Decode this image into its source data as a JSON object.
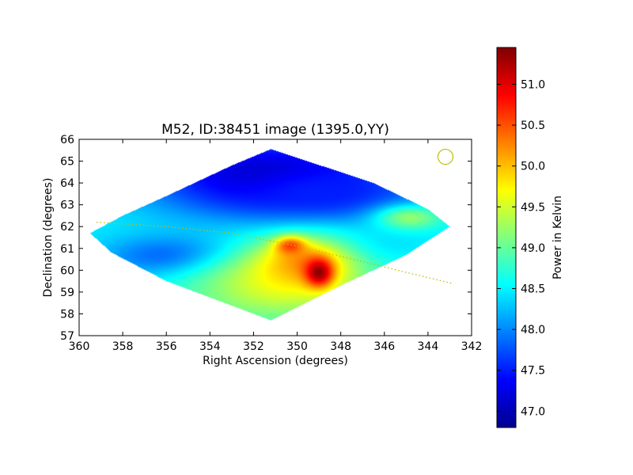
{
  "chart_data": {
    "type": "heatmap",
    "title": "M52, ID:38451 image (1395.0,YY)",
    "xlabel": "Right Ascension (degrees)",
    "ylabel": "Declination (degrees)",
    "xlim": [
      360,
      342
    ],
    "ylim": [
      57,
      66
    ],
    "xticks": [
      "360",
      "358",
      "356",
      "354",
      "352",
      "350",
      "348",
      "346",
      "344",
      "342"
    ],
    "yticks": [
      "57",
      "58",
      "59",
      "60",
      "61",
      "62",
      "63",
      "64",
      "65",
      "66"
    ],
    "colorbar": {
      "label": "Power in Kelvin",
      "range": [
        46.8,
        51.45
      ],
      "ticks": [
        "47.0",
        "47.5",
        "48.0",
        "48.5",
        "49.0",
        "49.5",
        "50.0",
        "50.5",
        "51.0"
      ],
      "colormap": "jet"
    },
    "map_boundary": [
      [
        351.2,
        65.55
      ],
      [
        346.5,
        64.0
      ],
      [
        344.0,
        62.8
      ],
      [
        343.0,
        62.0
      ],
      [
        345.0,
        60.7
      ],
      [
        348.0,
        59.3
      ],
      [
        351.2,
        57.7
      ],
      [
        356.0,
        59.5
      ],
      [
        358.5,
        60.8
      ],
      [
        359.5,
        61.7
      ],
      [
        358.0,
        62.5
      ],
      [
        356.0,
        63.4
      ],
      [
        353.0,
        64.8
      ]
    ],
    "background_level": 48.5,
    "features": [
      {
        "ra": 351.2,
        "dec": 64.3,
        "power": 47.0,
        "spread": [
          4.0,
          1.3
        ]
      },
      {
        "ra": 349.0,
        "dec": 63.6,
        "power": 47.5,
        "spread": [
          3.0,
          0.9
        ]
      },
      {
        "ra": 355.5,
        "dec": 60.6,
        "power": 47.6,
        "spread": [
          2.3,
          0.7
        ]
      },
      {
        "ra": 347.5,
        "dec": 61.0,
        "power": 48.2,
        "spread": [
          2.0,
          0.6
        ]
      },
      {
        "ra": 350.8,
        "dec": 59.3,
        "power": 49.5,
        "spread": [
          3.2,
          1.3
        ]
      },
      {
        "ra": 344.8,
        "dec": 62.4,
        "power": 49.2,
        "spread": [
          1.1,
          0.4
        ]
      },
      {
        "ra": 349.7,
        "dec": 60.3,
        "power": 50.2,
        "spread": [
          1.5,
          0.8
        ]
      },
      {
        "ra": 350.3,
        "dec": 61.1,
        "power": 50.6,
        "spread": [
          0.5,
          0.3
        ]
      },
      {
        "ra": 349.0,
        "dec": 59.9,
        "power": 51.4,
        "spread": [
          0.45,
          0.45
        ]
      }
    ],
    "overlay": {
      "track_color": "#bfbf00",
      "track": [
        [
          359.2,
          62.2
        ],
        [
          356.0,
          62.0
        ],
        [
          353.0,
          61.7
        ],
        [
          350.0,
          61.1
        ],
        [
          347.0,
          60.4
        ],
        [
          345.0,
          59.9
        ],
        [
          342.9,
          59.4
        ]
      ],
      "marker_color": "#bfbf00",
      "marker": [
        343.2,
        65.2
      ]
    },
    "grid": false,
    "legend": "none"
  }
}
